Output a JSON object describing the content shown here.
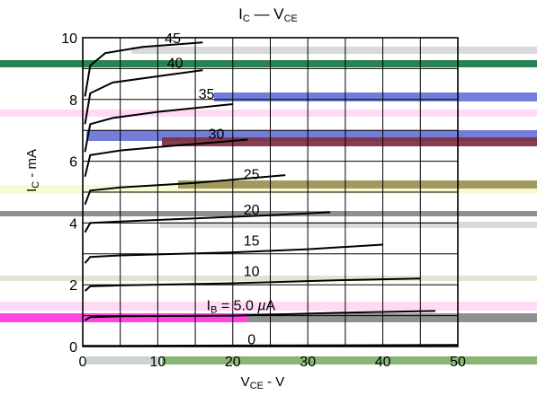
{
  "chart_data": {
    "type": "line",
    "title": {
      "main": "I",
      "main_sub": "C",
      "dash": " — ",
      "main2": "V",
      "main2_sub": "CE"
    },
    "xlabel": {
      "main": "V",
      "sub": "CE",
      "unit": " - V"
    },
    "ylabel": {
      "main": "I",
      "sub": "C",
      "unit": " - mA"
    },
    "xlim": [
      0,
      50
    ],
    "ylim": [
      0,
      10
    ],
    "xticks": [
      "0",
      "10",
      "20",
      "30",
      "40",
      "50"
    ],
    "yticks": [
      "0",
      "2",
      "4",
      "6",
      "8",
      "10"
    ],
    "grid": true,
    "series": [
      {
        "name": "0",
        "ib": 0,
        "points": [
          [
            0,
            0.02
          ],
          [
            50,
            0.05
          ]
        ]
      },
      {
        "name": "I_B = 5.0 µA",
        "ib": 5,
        "points": [
          [
            0.3,
            0.85
          ],
          [
            1,
            0.95
          ],
          [
            5,
            0.98
          ],
          [
            20,
            1.0
          ],
          [
            35,
            1.1
          ],
          [
            47,
            1.15
          ]
        ]
      },
      {
        "name": "10",
        "ib": 10,
        "points": [
          [
            0.3,
            1.8
          ],
          [
            1,
            1.95
          ],
          [
            5,
            1.98
          ],
          [
            20,
            2.05
          ],
          [
            35,
            2.15
          ],
          [
            45,
            2.2
          ]
        ]
      },
      {
        "name": "15",
        "ib": 15,
        "points": [
          [
            0.3,
            2.7
          ],
          [
            1,
            2.9
          ],
          [
            5,
            2.95
          ],
          [
            20,
            3.05
          ],
          [
            30,
            3.15
          ],
          [
            40,
            3.3
          ]
        ]
      },
      {
        "name": "20",
        "ib": 20,
        "points": [
          [
            0.3,
            3.7
          ],
          [
            1,
            4.0
          ],
          [
            5,
            4.05
          ],
          [
            15,
            4.15
          ],
          [
            25,
            4.25
          ],
          [
            33,
            4.35
          ]
        ]
      },
      {
        "name": "25",
        "ib": 25,
        "points": [
          [
            0.3,
            4.6
          ],
          [
            1,
            5.05
          ],
          [
            5,
            5.15
          ],
          [
            15,
            5.3
          ],
          [
            27,
            5.55
          ]
        ]
      },
      {
        "name": "30",
        "ib": 30,
        "points": [
          [
            0.3,
            5.5
          ],
          [
            1,
            6.2
          ],
          [
            5,
            6.35
          ],
          [
            12,
            6.5
          ],
          [
            22,
            6.7
          ]
        ]
      },
      {
        "name": "35",
        "ib": 35,
        "points": [
          [
            0.3,
            6.3
          ],
          [
            1,
            7.2
          ],
          [
            4,
            7.4
          ],
          [
            10,
            7.6
          ],
          [
            20,
            7.85
          ]
        ]
      },
      {
        "name": "40",
        "ib": 40,
        "points": [
          [
            0.3,
            7.2
          ],
          [
            1,
            8.2
          ],
          [
            4,
            8.55
          ],
          [
            10,
            8.75
          ],
          [
            16,
            8.95
          ]
        ]
      },
      {
        "name": "45",
        "ib": 45,
        "points": [
          [
            0.3,
            8.1
          ],
          [
            1,
            9.1
          ],
          [
            3,
            9.5
          ],
          [
            8,
            9.7
          ],
          [
            16,
            9.85
          ]
        ]
      }
    ],
    "curve_labels": [
      {
        "text": "45",
        "x": 12,
        "y": 10.0
      },
      {
        "text": "40",
        "x": 12.3,
        "y": 9.2
      },
      {
        "text": "35",
        "x": 16.5,
        "y": 8.2
      },
      {
        "text": "30",
        "x": 17.8,
        "y": 6.9
      },
      {
        "text": "25",
        "x": 22.5,
        "y": 5.6
      },
      {
        "text": "20",
        "x": 22.5,
        "y": 4.45
      },
      {
        "text": "15",
        "x": 22.5,
        "y": 3.45
      },
      {
        "text": "10",
        "x": 22.5,
        "y": 2.45
      },
      {
        "text": "I_B = 5.0 µA",
        "x": 16.5,
        "y": 1.35,
        "main": "I",
        "sub": "B",
        "rest": " = 5.0 ",
        "mu": "µ",
        "unit": "A"
      },
      {
        "text": "0",
        "x": 22.5,
        "y": 0.25
      }
    ],
    "artifact_colors": {
      "green": "#1f7a4d",
      "blue": "#6b77d8",
      "pink": "#ff3adf",
      "olive": "#9b9558",
      "gray": "#8a8a8a",
      "lightgray": "#d8d8d8",
      "lightpink": "#ffd7f4",
      "lightyellow": "#fafad0",
      "beige": "#e4dfd1",
      "darkred": "#7d3446"
    }
  }
}
